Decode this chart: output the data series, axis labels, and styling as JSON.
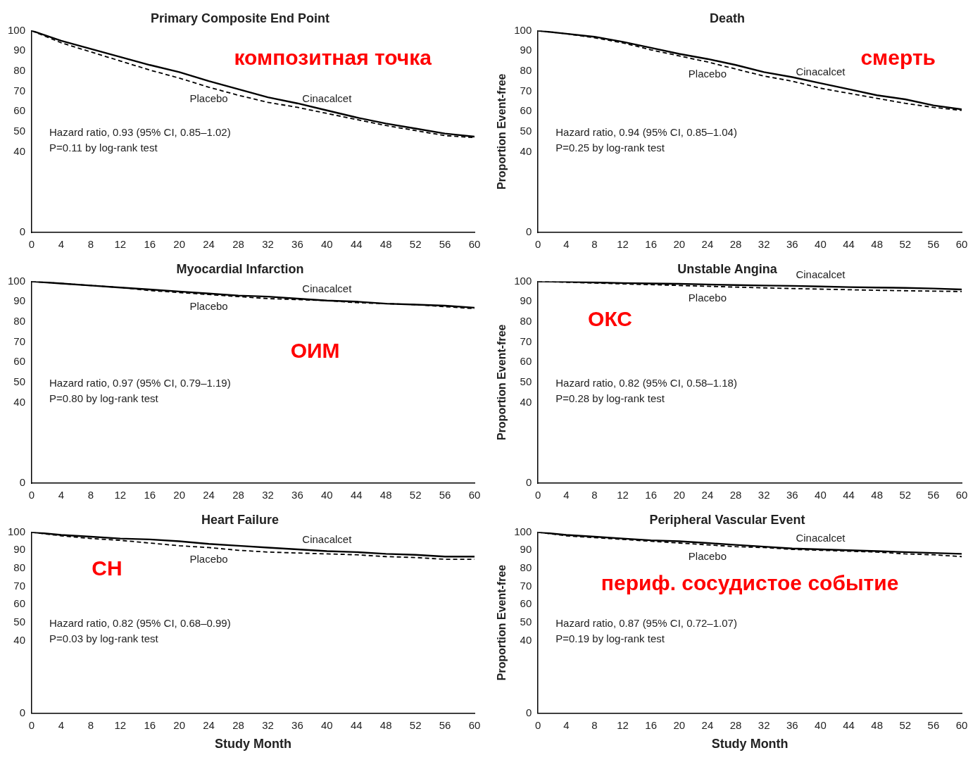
{
  "chart_data": [
    {
      "type": "line",
      "title": "Primary Composite End Point",
      "xlabel": null,
      "ylabel": null,
      "x": [
        0,
        4,
        8,
        12,
        16,
        20,
        24,
        28,
        32,
        36,
        40,
        44,
        48,
        52,
        56,
        60
      ],
      "xlim": [
        0,
        60
      ],
      "xticks": [
        0,
        4,
        8,
        12,
        16,
        20,
        24,
        28,
        32,
        36,
        40,
        44,
        48,
        52,
        56,
        60
      ],
      "ylim": [
        0,
        100
      ],
      "yticks": [
        0,
        40,
        50,
        60,
        70,
        80,
        90,
        100
      ],
      "legend": false,
      "grid": false,
      "marker": "none",
      "series": [
        {
          "name": "Cinacalcet",
          "color": "#000000",
          "line_style": "solid",
          "values": [
            100,
            95,
            91,
            87,
            83,
            79.5,
            75,
            71,
            67,
            64,
            60.5,
            57,
            54,
            51.5,
            49,
            47.5
          ]
        },
        {
          "name": "Placebo",
          "color": "#000000",
          "line_style": "dashed",
          "values": [
            100,
            94,
            89.5,
            85,
            80.5,
            76.5,
            72,
            68,
            64.5,
            62,
            59,
            56,
            53,
            50.5,
            48,
            47
          ]
        }
      ],
      "annotations": [
        "Hazard ratio, 0.93 (95% CI, 0.85–1.02)",
        "P=0.11 by log-rank test",
        "композитная точка"
      ]
    },
    {
      "type": "line",
      "title": "Death",
      "ylabel": "Proportion Event-free",
      "x": [
        0,
        4,
        8,
        12,
        16,
        20,
        24,
        28,
        32,
        36,
        40,
        44,
        48,
        52,
        56,
        60
      ],
      "xlim": [
        0,
        60
      ],
      "xticks": [
        0,
        4,
        8,
        12,
        16,
        20,
        24,
        28,
        32,
        36,
        40,
        44,
        48,
        52,
        56,
        60
      ],
      "ylim": [
        0,
        100
      ],
      "yticks": [
        0,
        40,
        50,
        60,
        70,
        80,
        90,
        100
      ],
      "legend": false,
      "grid": false,
      "marker": "none",
      "series": [
        {
          "name": "Cinacalcet",
          "color": "#000000",
          "line_style": "solid",
          "values": [
            100,
            98.5,
            97,
            94.5,
            91.5,
            88.5,
            86,
            83,
            79.5,
            77,
            74,
            71,
            68,
            66,
            63,
            61
          ]
        },
        {
          "name": "Placebo",
          "color": "#000000",
          "line_style": "dashed",
          "values": [
            100,
            98.5,
            96.5,
            94,
            90.5,
            87.5,
            84.5,
            81,
            77.5,
            75,
            71.5,
            69,
            66.5,
            64,
            62,
            60.5
          ]
        }
      ],
      "annotations": [
        "Hazard ratio, 0.94 (95% CI, 0.85–1.04)",
        "P=0.25 by log-rank test",
        "смерть"
      ]
    },
    {
      "type": "line",
      "title": "Myocardial Infarction",
      "x": [
        0,
        4,
        8,
        12,
        16,
        20,
        24,
        28,
        32,
        36,
        40,
        44,
        48,
        52,
        56,
        60
      ],
      "xlim": [
        0,
        60
      ],
      "xticks": [
        0,
        4,
        8,
        12,
        16,
        20,
        24,
        28,
        32,
        36,
        40,
        44,
        48,
        52,
        56,
        60
      ],
      "ylim": [
        0,
        100
      ],
      "yticks": [
        0,
        40,
        50,
        60,
        70,
        80,
        90,
        100
      ],
      "legend": false,
      "grid": false,
      "marker": "none",
      "series": [
        {
          "name": "Cinacalcet",
          "color": "#000000",
          "line_style": "solid",
          "values": [
            100,
            99,
            98,
            97,
            96,
            95,
            94,
            93,
            92.5,
            91.5,
            90.5,
            90,
            89,
            88.5,
            88,
            87
          ]
        },
        {
          "name": "Placebo",
          "color": "#000000",
          "line_style": "dashed",
          "values": [
            100,
            99,
            98,
            97,
            95.5,
            94.5,
            93.5,
            92.5,
            91.5,
            91,
            90.5,
            89.5,
            89,
            88.5,
            87.5,
            86.5
          ]
        }
      ],
      "annotations": [
        "Hazard ratio, 0.97 (95% CI, 0.79–1.19)",
        "P=0.80 by log-rank test",
        "ОИМ"
      ]
    },
    {
      "type": "line",
      "title": "Unstable Angina",
      "ylabel": "Proportion Event-free",
      "x": [
        0,
        4,
        8,
        12,
        16,
        20,
        24,
        28,
        32,
        36,
        40,
        44,
        48,
        52,
        56,
        60
      ],
      "xlim": [
        0,
        60
      ],
      "xticks": [
        0,
        4,
        8,
        12,
        16,
        20,
        24,
        28,
        32,
        36,
        40,
        44,
        48,
        52,
        56,
        60
      ],
      "ylim": [
        0,
        100
      ],
      "yticks": [
        0,
        40,
        50,
        60,
        70,
        80,
        90,
        100
      ],
      "legend": false,
      "grid": false,
      "marker": "none",
      "series": [
        {
          "name": "Cinacalcet",
          "color": "#000000",
          "line_style": "solid",
          "values": [
            100,
            99.8,
            99.5,
            99.2,
            99,
            98.8,
            98.5,
            98.2,
            98,
            97.8,
            97.5,
            97.2,
            97,
            96.8,
            96.5,
            96
          ]
        },
        {
          "name": "Placebo",
          "color": "#000000",
          "line_style": "dashed",
          "values": [
            100,
            99.6,
            99.2,
            98.8,
            98.4,
            98,
            97.6,
            97.2,
            96.8,
            96.5,
            96.2,
            95.9,
            95.6,
            95.4,
            95.2,
            95
          ]
        }
      ],
      "annotations": [
        "Hazard ratio, 0.82 (95% CI, 0.58–1.18)",
        "P=0.28 by log-rank test",
        "ОКС"
      ]
    },
    {
      "type": "line",
      "title": "Heart Failure",
      "xlabel": "Study Month",
      "x": [
        0,
        4,
        8,
        12,
        16,
        20,
        24,
        28,
        32,
        36,
        40,
        44,
        48,
        52,
        56,
        60
      ],
      "xlim": [
        0,
        60
      ],
      "xticks": [
        0,
        4,
        8,
        12,
        16,
        20,
        24,
        28,
        32,
        36,
        40,
        44,
        48,
        52,
        56,
        60
      ],
      "ylim": [
        0,
        100
      ],
      "yticks": [
        0,
        40,
        50,
        60,
        70,
        80,
        90,
        100
      ],
      "legend": false,
      "grid": false,
      "marker": "none",
      "series": [
        {
          "name": "Cinacalcet",
          "color": "#000000",
          "line_style": "solid",
          "values": [
            100,
            98.5,
            97.5,
            96.5,
            96,
            95,
            93.5,
            92.5,
            91.5,
            90.5,
            89.5,
            89,
            88,
            87.5,
            86.5,
            86.5
          ]
        },
        {
          "name": "Placebo",
          "color": "#000000",
          "line_style": "dashed",
          "values": [
            100,
            98,
            96.5,
            95.5,
            94,
            92.5,
            91.5,
            90,
            89,
            88.5,
            88,
            87.5,
            86.5,
            86,
            85,
            85
          ]
        }
      ],
      "annotations": [
        "Hazard ratio, 0.82 (95% CI, 0.68–0.99)",
        "P=0.03 by log-rank test",
        "СН"
      ]
    },
    {
      "type": "line",
      "title": "Peripheral Vascular Event",
      "xlabel": "Study Month",
      "ylabel": "Proportion Event-free",
      "x": [
        0,
        4,
        8,
        12,
        16,
        20,
        24,
        28,
        32,
        36,
        40,
        44,
        48,
        52,
        56,
        60
      ],
      "xlim": [
        0,
        60
      ],
      "xticks": [
        0,
        4,
        8,
        12,
        16,
        20,
        24,
        28,
        32,
        36,
        40,
        44,
        48,
        52,
        56,
        60
      ],
      "ylim": [
        0,
        100
      ],
      "yticks": [
        0,
        40,
        50,
        60,
        70,
        80,
        90,
        100
      ],
      "legend": false,
      "grid": false,
      "marker": "none",
      "series": [
        {
          "name": "Cinacalcet",
          "color": "#000000",
          "line_style": "solid",
          "values": [
            100,
            98.5,
            97.5,
            96.5,
            95.5,
            95,
            94,
            93,
            92,
            91,
            90.5,
            90,
            89.5,
            89,
            88.5,
            88
          ]
        },
        {
          "name": "Placebo",
          "color": "#000000",
          "line_style": "dashed",
          "values": [
            100,
            98,
            97,
            96,
            95,
            94,
            93,
            92,
            91.5,
            90.5,
            90,
            89.5,
            89,
            88,
            87.5,
            86.5
          ]
        }
      ],
      "annotations": [
        "Hazard ratio, 0.87 (95% CI, 0.72–1.07)",
        "P=0.19 by log-rank test",
        "периф. сосудистое событие"
      ]
    }
  ]
}
